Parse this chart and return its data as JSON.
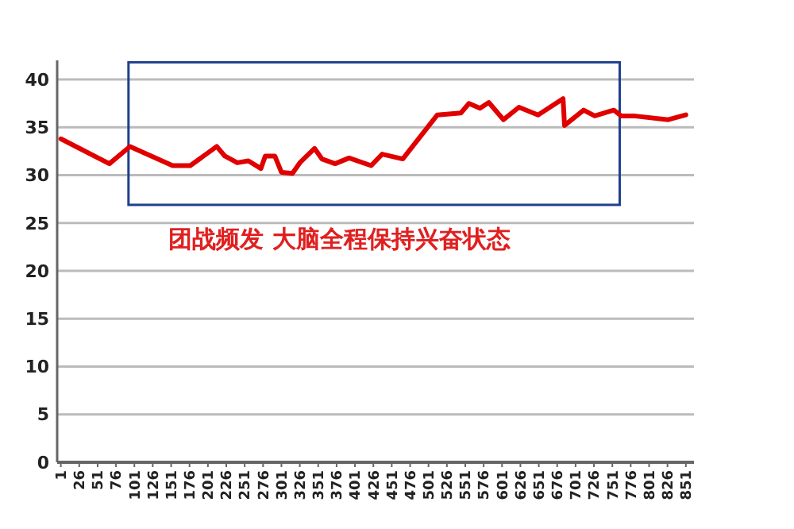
{
  "chart_data": {
    "type": "line",
    "annotations": [
      "团战频发 大脑全程保持兴奋状态"
    ],
    "xlim": [
      -4,
      862
    ],
    "xticks": [
      1,
      26,
      51,
      76,
      101,
      126,
      151,
      176,
      201,
      226,
      251,
      276,
      301,
      326,
      351,
      376,
      401,
      426,
      451,
      476,
      501,
      526,
      551,
      576,
      601,
      626,
      651,
      676,
      701,
      726,
      751,
      776,
      801,
      826,
      851
    ],
    "ylim": [
      0,
      42
    ],
    "yticks": [
      0,
      5,
      10,
      15,
      20,
      25,
      30,
      35,
      40
    ],
    "grid": "y",
    "line_style": "solid",
    "marker": "none",
    "series": [
      {
        "color": "#e00000",
        "x": [
          1,
          67,
          95,
          153,
          177,
          213,
          224,
          241,
          256,
          273,
          279,
          292,
          301,
          316,
          326,
          346,
          356,
          374,
          393,
          423,
          438,
          466,
          513,
          545,
          556,
          571,
          583,
          603,
          624,
          650,
          684,
          686,
          712,
          727,
          753,
          763,
          780,
          827,
          851
        ],
        "values": [
          33.8,
          31.2,
          33,
          31,
          31,
          33,
          32,
          31.3,
          31.5,
          30.7,
          32,
          32,
          30.3,
          30.2,
          31.3,
          32.8,
          31.7,
          31.2,
          31.8,
          31,
          32.2,
          31.7,
          36.3,
          36.5,
          37.5,
          37,
          37.6,
          35.8,
          37.1,
          36.3,
          38,
          35.2,
          36.8,
          36.2,
          36.8,
          36.2,
          36.2,
          35.8,
          36.3
        ]
      }
    ]
  }
}
